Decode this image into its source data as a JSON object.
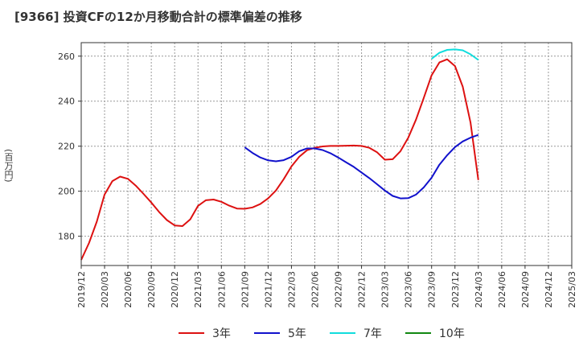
{
  "title": "[9366]  投資CFの12か月移動合計の標準偏差の推移",
  "y_unit_label": "(百万円)",
  "chart_data": {
    "type": "line",
    "title": "[9366]  投資CFの12か月移動合計の標準偏差の推移",
    "ylabel": "(百万円)",
    "ylim": [
      167,
      266
    ],
    "y_ticks": [
      180,
      200,
      220,
      240,
      260
    ],
    "x_range": [
      "2019-12",
      "2025-03"
    ],
    "x_ticks": [
      "2019/12",
      "2020/03",
      "2020/06",
      "2020/09",
      "2020/12",
      "2021/03",
      "2021/06",
      "2021/09",
      "2021/12",
      "2022/03",
      "2022/06",
      "2022/09",
      "2022/12",
      "2023/03",
      "2023/06",
      "2023/09",
      "2023/12",
      "2024/03",
      "2024/06",
      "2024/09",
      "2024/12",
      "2025/03"
    ],
    "grid": true,
    "legend_position": "bottom",
    "series": [
      {
        "name": "3年",
        "color": "#dd1111",
        "x": [
          "2019-12",
          "2020-01",
          "2020-02",
          "2020-03",
          "2020-04",
          "2020-05",
          "2020-06",
          "2020-07",
          "2020-08",
          "2020-09",
          "2020-10",
          "2020-11",
          "2020-12",
          "2021-01",
          "2021-02",
          "2021-03",
          "2021-04",
          "2021-05",
          "2021-06",
          "2021-07",
          "2021-08",
          "2021-09",
          "2021-10",
          "2021-11",
          "2021-12",
          "2022-01",
          "2022-02",
          "2022-03",
          "2022-04",
          "2022-05",
          "2022-06",
          "2022-07",
          "2022-08",
          "2022-09",
          "2022-10",
          "2022-11",
          "2022-12",
          "2023-01",
          "2023-02",
          "2023-03",
          "2023-04",
          "2023-05",
          "2023-06",
          "2023-07",
          "2023-08",
          "2023-09",
          "2023-10",
          "2023-11",
          "2023-12",
          "2024-01",
          "2024-02",
          "2024-03"
        ],
        "y": [
          169.5,
          177,
          186.5,
          198.5,
          204.5,
          206.5,
          205.5,
          202.5,
          198.8,
          195,
          190.8,
          187.2,
          184.8,
          184.5,
          187.5,
          193.5,
          196,
          196.3,
          195.3,
          193.6,
          192.3,
          192.2,
          192.8,
          194.3,
          196.8,
          200.3,
          205.3,
          211,
          215.3,
          218.2,
          219.3,
          219.9,
          220.1,
          220.1,
          220.2,
          220.3,
          220.1,
          219.3,
          217.3,
          214,
          214.2,
          217.8,
          223.8,
          231.8,
          241.5,
          251.5,
          257.2,
          258.6,
          255.6,
          246.5,
          230.5,
          205
        ]
      },
      {
        "name": "5年",
        "color": "#1111cc",
        "x": [
          "2021-09",
          "2021-10",
          "2021-11",
          "2021-12",
          "2022-01",
          "2022-02",
          "2022-03",
          "2022-04",
          "2022-05",
          "2022-06",
          "2022-07",
          "2022-08",
          "2022-09",
          "2022-10",
          "2022-11",
          "2022-12",
          "2023-01",
          "2023-02",
          "2023-03",
          "2023-04",
          "2023-05",
          "2023-06",
          "2023-07",
          "2023-08",
          "2023-09",
          "2023-10",
          "2023-11",
          "2023-12",
          "2024-01",
          "2024-02",
          "2024-03"
        ],
        "y": [
          219.5,
          217,
          215,
          213.7,
          213.3,
          213.8,
          215.3,
          217.8,
          219,
          219,
          218.3,
          216.9,
          215,
          212.9,
          210.8,
          208.3,
          205.8,
          203.1,
          200.3,
          197.9,
          196.8,
          196.9,
          198.5,
          201.7,
          206,
          211.8,
          216,
          219.6,
          222.1,
          223.8,
          225
        ]
      },
      {
        "name": "7年",
        "color": "#11dddd",
        "x": [
          "2023-09",
          "2023-10",
          "2023-11",
          "2023-12",
          "2024-01",
          "2024-02",
          "2024-03"
        ],
        "y": [
          258.8,
          261.5,
          262.8,
          263,
          262.6,
          260.8,
          258.3
        ]
      },
      {
        "name": "10年",
        "color": "#118811",
        "x": [],
        "y": []
      }
    ]
  }
}
